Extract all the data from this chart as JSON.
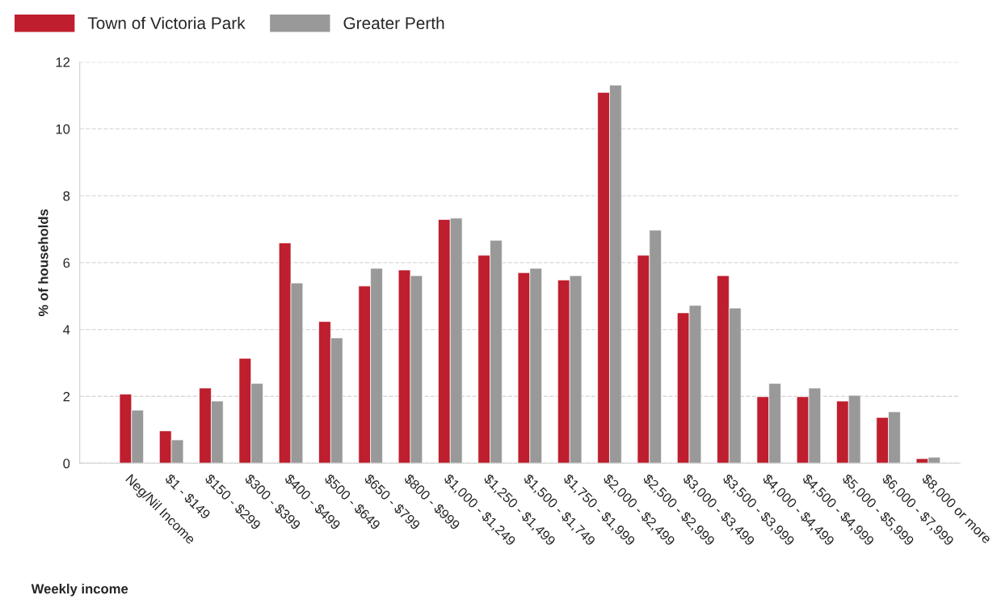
{
  "chart_data": {
    "type": "bar",
    "xlabel": "Weekly income",
    "ylabel": "% of households",
    "categories": [
      "Neg/Nil Income",
      "$1 - $149",
      "$150 - $299",
      "$300 - $399",
      "$400 - $499",
      "$500 - $649",
      "$650 - $799",
      "$800 - $999",
      "$1,000 - $1,249",
      "$1,250 - $1,499",
      "$1,500 - $1,749",
      "$1,750 - $1,999",
      "$2,000 - $2,499",
      "$2,500 - $2,999",
      "$3,000 - $3,499",
      "$3,500 - $3,999",
      "$4,000 - $4,499",
      "$4,500 - $4,999",
      "$5,000 - $5,999",
      "$6,000 - $7,999",
      "$8,000 or more"
    ],
    "series": [
      {
        "name": "Town of Victoria Park",
        "color": "#be1e2d",
        "values": [
          2.07,
          0.97,
          2.25,
          3.14,
          6.59,
          4.24,
          5.3,
          5.78,
          7.29,
          6.22,
          5.7,
          5.48,
          11.09,
          6.22,
          4.5,
          5.61,
          1.99,
          1.99,
          1.86,
          1.37,
          0.14
        ]
      },
      {
        "name": "Greater Perth",
        "color": "#999999",
        "values": [
          1.59,
          0.7,
          1.86,
          2.39,
          5.39,
          3.75,
          5.83,
          5.61,
          7.33,
          6.67,
          5.83,
          5.61,
          11.31,
          6.97,
          4.72,
          4.64,
          2.39,
          2.25,
          2.03,
          1.54,
          0.18
        ]
      }
    ],
    "ylim": [
      0,
      12
    ],
    "yticks": [
      0,
      2,
      4,
      6,
      8,
      10,
      12
    ],
    "grid": "y",
    "legend": "top left"
  }
}
